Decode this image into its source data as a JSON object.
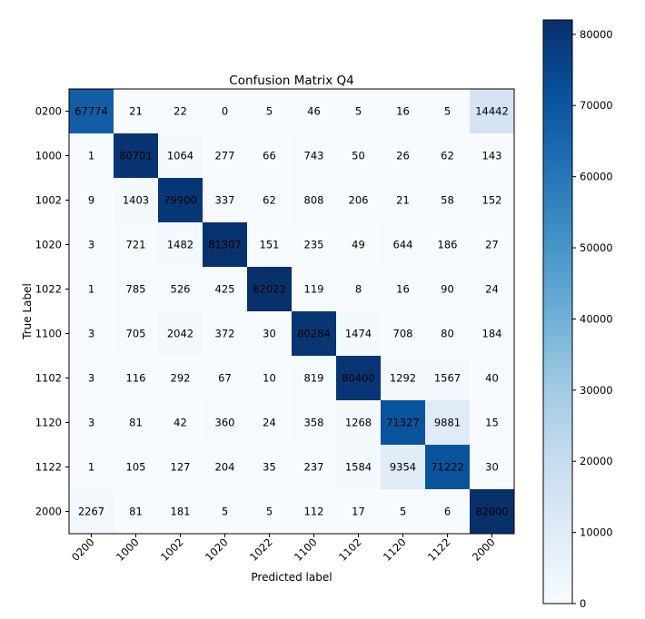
{
  "chart_data": {
    "type": "heatmap",
    "title": "Confusion Matrix Q4",
    "xlabel": "Predicted label",
    "ylabel": "True Label",
    "x_categories": [
      "0200",
      "1000",
      "1002",
      "1020",
      "1022",
      "1100",
      "1102",
      "1120",
      "1122",
      "2000"
    ],
    "y_categories": [
      "0200",
      "1000",
      "1002",
      "1020",
      "1022",
      "1100",
      "1102",
      "1120",
      "1122",
      "2000"
    ],
    "matrix": [
      [
        67774,
        21,
        22,
        0,
        5,
        46,
        5,
        16,
        5,
        14442
      ],
      [
        1,
        80701,
        1064,
        277,
        66,
        743,
        50,
        26,
        62,
        143
      ],
      [
        9,
        1403,
        79900,
        337,
        62,
        808,
        206,
        21,
        58,
        152
      ],
      [
        3,
        721,
        1482,
        81307,
        151,
        235,
        49,
        644,
        186,
        27
      ],
      [
        1,
        785,
        526,
        425,
        82022,
        119,
        8,
        16,
        90,
        24
      ],
      [
        3,
        705,
        2042,
        372,
        30,
        80284,
        1474,
        708,
        80,
        184
      ],
      [
        3,
        116,
        292,
        67,
        10,
        819,
        80400,
        1292,
        1567,
        40
      ],
      [
        3,
        81,
        42,
        360,
        24,
        358,
        1268,
        71327,
        9881,
        15
      ],
      [
        1,
        105,
        127,
        204,
        35,
        237,
        1584,
        9354,
        71222,
        30
      ],
      [
        2267,
        81,
        181,
        5,
        5,
        112,
        17,
        5,
        6,
        82000
      ]
    ],
    "colormap": "Blues",
    "colorbar": {
      "ticks": [
        0,
        10000,
        20000,
        30000,
        40000,
        50000,
        60000,
        70000,
        80000
      ],
      "range": [
        0,
        82022
      ]
    }
  }
}
